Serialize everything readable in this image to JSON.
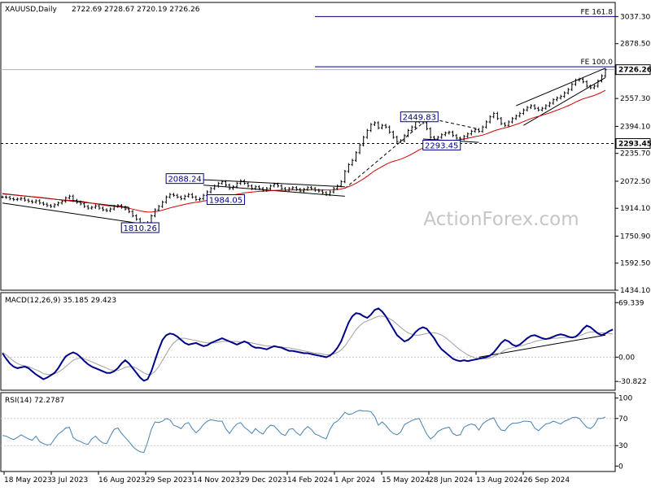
{
  "header": {
    "symbol": "XAUUSD,Daily",
    "ohlc": "2722.69 2728.67 2720.19 2726.26"
  },
  "watermark": "ActionForex.com",
  "colors": {
    "price": "#000000",
    "ma": "#d40000",
    "macd": "#00008b",
    "signal": "#a0a0a0",
    "rsi": "#4682b4",
    "grid": "#c8c8c8",
    "box_border": "#00008b"
  },
  "chart_data": [
    {
      "type": "line",
      "title": "",
      "y_ticks": [
        "3037.30",
        "2878.50",
        "2557.30",
        "2394.10",
        "2235.70",
        "2072.50",
        "1914.10",
        "1750.90",
        "1592.50",
        "1434.10"
      ],
      "ylim": [
        1434.1,
        3120
      ],
      "current_price": "2726.26",
      "x_labels": [
        "18 May 2023",
        "3 Jul 2023",
        "16 Aug 2023",
        "29 Sep 2023",
        "14 Nov 2023",
        "29 Dec 2023",
        "14 Feb 2024",
        "1 Apr 2024",
        "15 May 2024",
        "28 Jun 2024",
        "13 Aug 2024",
        "26 Sep 2024"
      ],
      "series": [
        {
          "values": [
            1980,
            1978,
            1970,
            1965,
            1968,
            1972,
            1962,
            1955,
            1950,
            1958,
            1945,
            1938,
            1930,
            1925,
            1935,
            1945,
            1955,
            1975,
            1985,
            1960,
            1950,
            1940,
            1925,
            1915,
            1920,
            1928,
            1915,
            1905,
            1900,
            1910,
            1925,
            1930,
            1920,
            1910,
            1895,
            1870,
            1850,
            1825,
            1815,
            1830,
            1870,
            1905,
            1925,
            1950,
            1980,
            1995,
            1990,
            1980,
            1970,
            1985,
            1995,
            1980,
            1965,
            1970,
            1990,
            2010,
            2030,
            2045,
            2060,
            2070,
            2050,
            2030,
            2040,
            2060,
            2075,
            2060,
            2045,
            2030,
            2040,
            2030,
            2020,
            2030,
            2045,
            2055,
            2045,
            2030,
            2020,
            2030,
            2035,
            2025,
            2015,
            2025,
            2035,
            2030,
            2020,
            2015,
            2005,
            1995,
            2010,
            2030,
            2045,
            2070,
            2130,
            2170,
            2195,
            2240,
            2285,
            2330,
            2370,
            2405,
            2415,
            2385,
            2400,
            2390,
            2360,
            2330,
            2305,
            2310,
            2340,
            2370,
            2390,
            2420,
            2445,
            2415,
            2380,
            2330,
            2320,
            2330,
            2345,
            2355,
            2360,
            2340,
            2325,
            2320,
            2335,
            2350,
            2365,
            2375,
            2365,
            2390,
            2420,
            2450,
            2470,
            2440,
            2410,
            2400,
            2420,
            2440,
            2455,
            2470,
            2490,
            2505,
            2515,
            2500,
            2490,
            2500,
            2515,
            2530,
            2550,
            2560,
            2570,
            2590,
            2610,
            2640,
            2665,
            2670,
            2655,
            2630,
            2620,
            2630,
            2660,
            2690,
            2726.26
          ]
        },
        {
          "values": [
            1998,
            1996,
            1994,
            1992,
            1990,
            1988,
            1986,
            1984,
            1982,
            1980,
            1978,
            1976,
            1973,
            1970,
            1967,
            1965,
            1963,
            1962,
            1961,
            1960,
            1958,
            1955,
            1952,
            1948,
            1944,
            1940,
            1937,
            1933,
            1930,
            1927,
            1925,
            1923,
            1921,
            1918,
            1914,
            1909,
            1904,
            1899,
            1895,
            1892,
            1892,
            1894,
            1898,
            1903,
            1910,
            1916,
            1922,
            1927,
            1932,
            1937,
            1942,
            1946,
            1949,
            1952,
            1956,
            1960,
            1965,
            1970,
            1975,
            1980,
            1984,
            1988,
            1992,
            1996,
            2000,
            2004,
            2007,
            2009,
            2011,
            2013,
            2014,
            2015,
            2017,
            2019,
            2020,
            2020,
            2020,
            2021,
            2022,
            2022,
            2022,
            2022,
            2022,
            2022,
            2022,
            2022,
            2022,
            2021,
            2021,
            2022,
            2024,
            2027,
            2033,
            2041,
            2050,
            2061,
            2073,
            2087,
            2102,
            2118,
            2134,
            2146,
            2159,
            2171,
            2181,
            2189,
            2195,
            2202,
            2211,
            2221,
            2232,
            2244,
            2257,
            2267,
            2275,
            2281,
            2286,
            2291,
            2296,
            2301,
            2306,
            2310,
            2313,
            2316,
            2320,
            2324,
            2329,
            2334,
            2338,
            2343,
            2350,
            2358,
            2367,
            2374,
            2380,
            2385,
            2391,
            2398,
            2405,
            2413,
            2422,
            2431,
            2440,
            2447,
            2453,
            2459,
            2466,
            2473,
            2481,
            2489,
            2497,
            2506,
            2515,
            2525,
            2536,
            2546,
            2555,
            2562,
            2568,
            2575,
            2584,
            2594,
            2605
          ]
        }
      ],
      "annotations": [
        {
          "label": "FE 161.8",
          "value": 3037.3
        },
        {
          "label": "FE 100.0",
          "value": 2743
        },
        {
          "label": "2293.45",
          "value": 2293.45,
          "axis_label": "2293.45"
        },
        {
          "label": "2088.24",
          "value": 2088.24
        },
        {
          "label": "1984.05",
          "value": 1984.05
        },
        {
          "label": "1810.26",
          "value": 1810.26
        },
        {
          "label": "2449.83",
          "value": 2449.83
        },
        {
          "label": "2293.45",
          "value": 2293.45
        }
      ]
    },
    {
      "type": "line",
      "title": "MACD(12,26,9) 35.185 29.423",
      "y_ticks": [
        "69.339",
        "0.00",
        "-30.822"
      ],
      "ylim": [
        -30.822,
        69.339
      ],
      "series": [
        {
          "values": [
            5,
            -2,
            -8,
            -12,
            -14,
            -13,
            -12,
            -14,
            -18,
            -22,
            -25,
            -28,
            -26,
            -23,
            -20,
            -14,
            -6,
            1,
            4,
            6,
            4,
            0,
            -5,
            -9,
            -12,
            -14,
            -16,
            -18,
            -20,
            -20,
            -18,
            -14,
            -8,
            -4,
            -8,
            -14,
            -20,
            -26,
            -30,
            -28,
            -18,
            -4,
            10,
            22,
            28,
            30,
            29,
            26,
            22,
            18,
            16,
            17,
            18,
            16,
            14,
            15,
            18,
            20,
            22,
            24,
            22,
            20,
            18,
            16,
            18,
            20,
            18,
            14,
            12,
            12,
            11,
            10,
            12,
            14,
            13,
            12,
            10,
            8,
            8,
            7,
            6,
            5,
            5,
            4,
            3,
            2,
            1,
            0,
            2,
            6,
            12,
            20,
            32,
            44,
            52,
            56,
            55,
            52,
            50,
            54,
            60,
            62,
            58,
            52,
            44,
            36,
            28,
            24,
            20,
            22,
            26,
            32,
            36,
            38,
            36,
            30,
            24,
            16,
            10,
            6,
            2,
            -2,
            -4,
            -5,
            -4,
            -5,
            -4,
            -3,
            -2,
            -1,
            0,
            2,
            6,
            12,
            18,
            22,
            20,
            16,
            14,
            16,
            20,
            24,
            27,
            28,
            26,
            24,
            23,
            24,
            26,
            28,
            29,
            28,
            26,
            25,
            26,
            30,
            36,
            40,
            38,
            34,
            30,
            28,
            30,
            33,
            35.185
          ]
        },
        {
          "values": [
            6,
            3,
            -1,
            -5,
            -8,
            -10,
            -11,
            -12,
            -14,
            -16,
            -18,
            -21,
            -22,
            -22,
            -21,
            -19,
            -16,
            -12,
            -8,
            -4,
            -2,
            -1,
            -2,
            -4,
            -6,
            -8,
            -10,
            -12,
            -14,
            -16,
            -17,
            -17,
            -15,
            -13,
            -12,
            -12,
            -14,
            -17,
            -20,
            -22,
            -22,
            -18,
            -12,
            -4,
            4,
            12,
            18,
            22,
            24,
            24,
            23,
            22,
            21,
            20,
            19,
            18,
            18,
            18,
            19,
            20,
            20,
            20,
            20,
            20,
            19,
            19,
            19,
            18,
            17,
            16,
            15,
            14,
            14,
            13,
            13,
            13,
            12,
            12,
            11,
            10,
            9,
            8,
            7,
            6,
            5,
            5,
            4,
            3,
            3,
            4,
            6,
            9,
            14,
            21,
            28,
            35,
            40,
            44,
            46,
            48,
            50,
            52,
            52,
            51,
            49,
            46,
            42,
            38,
            34,
            31,
            29,
            28,
            28,
            29,
            30,
            31,
            31,
            30,
            28,
            25,
            21,
            17,
            13,
            9,
            6,
            3,
            1,
            -1,
            -2,
            -2,
            -2,
            -1,
            1,
            3,
            6,
            9,
            11,
            12,
            13,
            14,
            15,
            17,
            18,
            20,
            21,
            22,
            23,
            23,
            24,
            24,
            25,
            25,
            25,
            25,
            26,
            27,
            29,
            31,
            32,
            32,
            31,
            31,
            31,
            30,
            29.423
          ]
        }
      ]
    },
    {
      "type": "line",
      "title": "RSI(14) 72.2787",
      "y_ticks": [
        "100",
        "70",
        "30",
        "0"
      ],
      "ylim": [
        0,
        100
      ],
      "series": [
        {
          "values": [
            45,
            44,
            41,
            39,
            42,
            46,
            43,
            40,
            38,
            44,
            36,
            33,
            31,
            32,
            40,
            47,
            51,
            56,
            57,
            42,
            38,
            36,
            33,
            32,
            40,
            44,
            38,
            34,
            33,
            44,
            54,
            56,
            48,
            42,
            36,
            29,
            24,
            21,
            20,
            35,
            54,
            65,
            64,
            66,
            70,
            68,
            60,
            58,
            55,
            62,
            64,
            55,
            49,
            54,
            61,
            66,
            68,
            67,
            66,
            66,
            55,
            48,
            56,
            62,
            64,
            57,
            53,
            48,
            55,
            50,
            47,
            55,
            60,
            59,
            53,
            47,
            45,
            54,
            55,
            49,
            45,
            53,
            58,
            54,
            47,
            45,
            42,
            40,
            54,
            63,
            66,
            72,
            79,
            76,
            77,
            80,
            82,
            81,
            81,
            80,
            73,
            60,
            65,
            60,
            53,
            48,
            46,
            50,
            61,
            64,
            67,
            69,
            70,
            58,
            47,
            40,
            44,
            51,
            54,
            56,
            57,
            48,
            45,
            46,
            57,
            60,
            62,
            60,
            53,
            62,
            66,
            69,
            71,
            60,
            53,
            52,
            59,
            63,
            63,
            64,
            66,
            66,
            65,
            56,
            52,
            57,
            62,
            63,
            66,
            64,
            62,
            66,
            68,
            71,
            72,
            70,
            63,
            57,
            55,
            60,
            70,
            70,
            72.2787
          ]
        }
      ]
    }
  ]
}
